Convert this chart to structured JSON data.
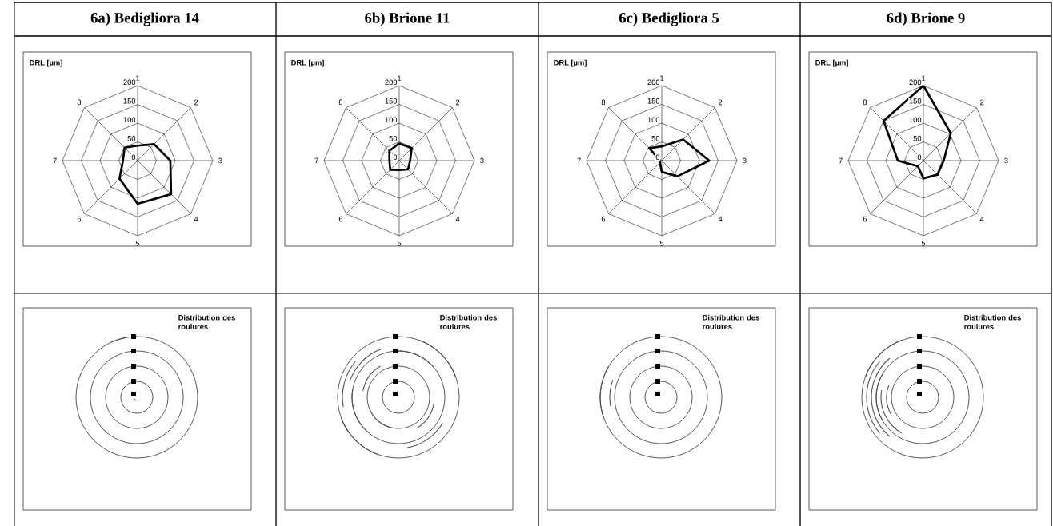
{
  "chart_data": [
    {
      "type": "radar",
      "title": "6a) Bedigliora 14",
      "ylabel": "DRL  [µm]",
      "categories": [
        "1",
        "2",
        "3",
        "4",
        "5",
        "6",
        "7",
        "8"
      ],
      "ylim": [
        0,
        200
      ],
      "yticks": [
        0,
        50,
        100,
        150,
        200
      ],
      "grid": true,
      "series": [
        {
          "color": "#000000",
          "values": [
            40,
            62,
            87,
            126,
            115,
            68,
            39,
            49
          ]
        }
      ]
    },
    {
      "type": "radar",
      "title": "6b) Brione 11",
      "ylabel": "DRL  [µm]",
      "categories": [
        "1",
        "2",
        "3",
        "4",
        "5",
        "6",
        "7",
        "8"
      ],
      "ylim": [
        0,
        200
      ],
      "yticks": [
        0,
        50,
        100,
        150,
        200
      ],
      "grid": true,
      "series": [
        {
          "color": "#000000",
          "values": [
            46,
            47,
            29,
            33,
            25,
            34,
            26,
            37
          ]
        }
      ]
    },
    {
      "type": "radar",
      "title": "6c) Bedigliora 5",
      "ylabel": "DRL  [µm]",
      "categories": [
        "1",
        "2",
        "3",
        "4",
        "5",
        "6",
        "7",
        "8"
      ],
      "ylim": [
        0,
        200
      ],
      "yticks": [
        0,
        50,
        100,
        150,
        200
      ],
      "grid": true,
      "series": [
        {
          "color": "#000000",
          "values": [
            38,
            80,
            126,
            59,
            30,
            7,
            5,
            47
          ]
        }
      ]
    },
    {
      "type": "radar",
      "title": "6d) Brione 9",
      "ylabel": "DRL  [µm]",
      "categories": [
        "1",
        "2",
        "3",
        "4",
        "5",
        "6",
        "7",
        "8"
      ],
      "ylim": [
        0,
        200
      ],
      "yticks": [
        0,
        50,
        100,
        150,
        200
      ],
      "grid": true,
      "series": [
        {
          "color": "#000000",
          "values": [
            200,
            103,
            54,
            53,
            47,
            21,
            68,
            150
          ]
        }
      ]
    },
    {
      "type": "other",
      "annotations": [
        "Distribution des roulures"
      ]
    },
    {
      "type": "other",
      "annotations": [
        "Distribution des roulures"
      ]
    },
    {
      "type": "other",
      "annotations": [
        "Distribution des roulures"
      ]
    },
    {
      "type": "other",
      "annotations": [
        "Distribution des roulures"
      ]
    }
  ]
}
